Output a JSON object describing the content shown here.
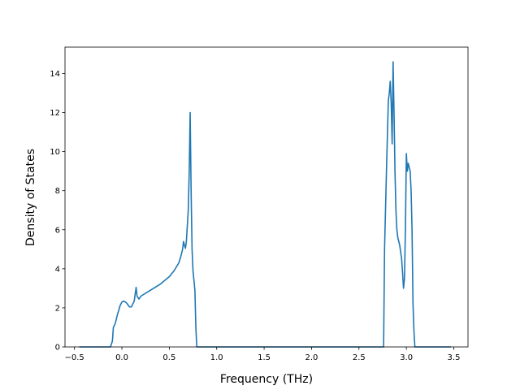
{
  "chart_data": {
    "type": "line",
    "xlabel": "Frequency (THz)",
    "ylabel": "Density of States",
    "xlim": [
      -0.6,
      3.65
    ],
    "ylim": [
      0,
      15.35
    ],
    "xticks": [
      -0.5,
      0.0,
      0.5,
      1.0,
      1.5,
      2.0,
      2.5,
      3.0,
      3.5
    ],
    "xtick_labels": [
      "−0.5",
      "0.0",
      "0.5",
      "1.0",
      "1.5",
      "2.0",
      "2.5",
      "3.0",
      "3.5"
    ],
    "yticks": [
      0,
      2,
      4,
      6,
      8,
      10,
      12,
      14
    ],
    "ytick_labels": [
      "0",
      "2",
      "4",
      "6",
      "8",
      "10",
      "12",
      "14"
    ],
    "grid": false,
    "color": "#1f77b4",
    "series": [
      {
        "x": [
          -0.45,
          -0.12,
          -0.1,
          -0.09,
          -0.07,
          -0.05,
          -0.02,
          0.0,
          0.02,
          0.05,
          0.08,
          0.1,
          0.13,
          0.15,
          0.16,
          0.18,
          0.2,
          0.3,
          0.4,
          0.5,
          0.55,
          0.6,
          0.62,
          0.64,
          0.65,
          0.66,
          0.67,
          0.68,
          0.7,
          0.71,
          0.72,
          0.73,
          0.74,
          0.75,
          0.76,
          0.77,
          0.78,
          0.79,
          0.81,
          0.82,
          2.76,
          2.77,
          2.79,
          2.81,
          2.82,
          2.83,
          2.84,
          2.85,
          2.86,
          2.87,
          2.88,
          2.89,
          2.9,
          2.91,
          2.93,
          2.95,
          2.96,
          2.97,
          2.98,
          2.99,
          3.0,
          3.01,
          3.02,
          3.03,
          3.04,
          3.05,
          3.06,
          3.07,
          3.08,
          3.09,
          3.1,
          3.11,
          3.13,
          3.15,
          3.2,
          3.47
        ],
        "y": [
          0.0,
          0.0,
          0.3,
          1.0,
          1.2,
          1.6,
          2.1,
          2.3,
          2.35,
          2.25,
          2.05,
          2.05,
          2.35,
          3.05,
          2.6,
          2.45,
          2.6,
          2.9,
          3.2,
          3.6,
          3.9,
          4.3,
          4.6,
          5.0,
          5.4,
          5.2,
          5.05,
          5.4,
          7.0,
          9.0,
          12.0,
          8.0,
          5.0,
          3.9,
          3.4,
          2.9,
          1.0,
          0.0,
          0.0,
          0.0,
          0.0,
          5.0,
          9.0,
          12.6,
          13.0,
          13.6,
          12.5,
          10.4,
          14.6,
          12.0,
          9.0,
          7.0,
          6.0,
          5.6,
          5.2,
          4.5,
          3.8,
          3.0,
          3.5,
          6.0,
          9.9,
          9.0,
          9.4,
          9.2,
          9.0,
          8.0,
          6.0,
          2.2,
          0.8,
          0.0,
          0.0,
          0.0,
          0.0,
          0.0,
          0.0,
          0.0
        ]
      }
    ]
  }
}
